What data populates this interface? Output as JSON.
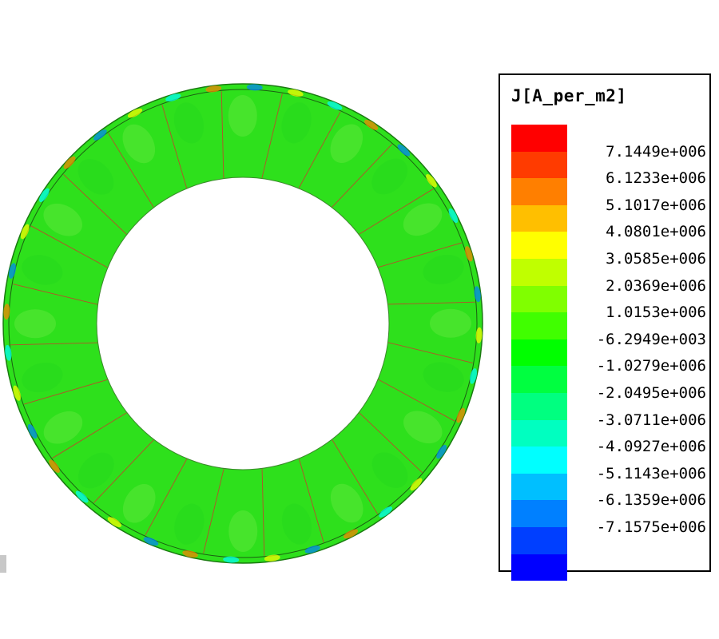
{
  "legend": {
    "title": "J[A_per_m2]",
    "colors": [
      "#ff0000",
      "#ff3b00",
      "#ff7f00",
      "#ffbf00",
      "#ffff00",
      "#c0ff00",
      "#80ff00",
      "#40ff00",
      "#00ff00",
      "#00ff40",
      "#00ff80",
      "#00ffc0",
      "#00ffff",
      "#00bfff",
      "#0080ff",
      "#003fff",
      "#0000ff"
    ],
    "labels": [
      "7.1449e+006",
      "6.1233e+006",
      "5.1017e+006",
      "4.0801e+006",
      "3.0585e+006",
      "2.0369e+006",
      "1.0153e+006",
      "-6.2949e+003",
      "-1.0279e+006",
      "-2.0495e+006",
      "-3.0711e+006",
      "-4.0927e+006",
      "-5.1143e+006",
      "-6.1359e+006",
      "-7.1575e+006"
    ]
  },
  "model": {
    "segments": 24,
    "base_color": "#2ee01c",
    "edge_highlight_colors": [
      "#ffff00",
      "#00ffff",
      "#ff7f00",
      "#0080ff"
    ]
  }
}
